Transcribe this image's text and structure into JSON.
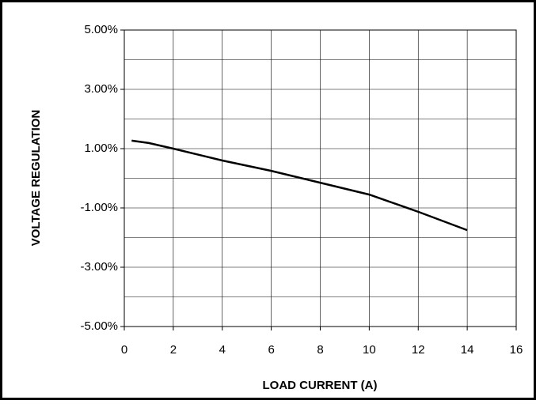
{
  "chart_data": {
    "type": "line",
    "xlabel": "LOAD CURRENT (A)",
    "ylabel": "VOLTAGE REGULATION",
    "x": [
      0.3,
      1,
      2,
      4,
      6,
      8,
      10,
      12,
      14
    ],
    "series": [
      {
        "name": "Voltage regulation",
        "color": "#000000",
        "values": [
          1.27,
          1.19,
          1.0,
          0.6,
          0.25,
          -0.15,
          -0.55,
          -1.13,
          -1.75
        ]
      }
    ],
    "xlim": [
      0,
      16
    ],
    "xticks": [
      0,
      2,
      4,
      6,
      8,
      10,
      12,
      14,
      16
    ],
    "ylim": [
      -5,
      5
    ],
    "yticks": [
      {
        "value": -5,
        "label": "-5.00%"
      },
      {
        "value": -3,
        "label": "-3.00%"
      },
      {
        "value": -1,
        "label": "-1.00%"
      },
      {
        "value": 1,
        "label": "1.00%"
      },
      {
        "value": 3,
        "label": "3.00%"
      },
      {
        "value": 5,
        "label": "5.00%"
      }
    ],
    "yminor_ticks": [
      -4,
      -2,
      0,
      2,
      4
    ],
    "grid": true
  }
}
